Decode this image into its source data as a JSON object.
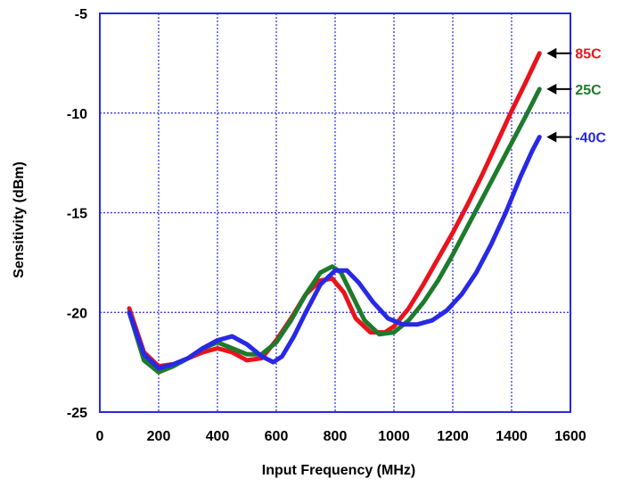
{
  "chart_data": {
    "type": "line",
    "title": "",
    "xlabel": "Input  Frequency (MHz)",
    "ylabel": "Sensitivity (dBm)",
    "xlim": [
      0,
      1600
    ],
    "ylim": [
      -25,
      -5
    ],
    "x_ticks": [
      "0",
      "200",
      "400",
      "600",
      "800",
      "1000",
      "1200",
      "1400",
      "1600"
    ],
    "y_ticks": [
      "-5",
      "-10",
      "-15",
      "-20",
      "-25"
    ],
    "grid": true,
    "legend": "right, arrow labels at line ends",
    "series": [
      {
        "name": "85C",
        "color": "#e8141c",
        "points": [
          [
            100,
            -19.8
          ],
          [
            150,
            -22.0
          ],
          [
            200,
            -22.7
          ],
          [
            250,
            -22.6
          ],
          [
            300,
            -22.3
          ],
          [
            350,
            -22.0
          ],
          [
            400,
            -21.8
          ],
          [
            450,
            -22.0
          ],
          [
            500,
            -22.4
          ],
          [
            550,
            -22.3
          ],
          [
            600,
            -21.4
          ],
          [
            650,
            -20.3
          ],
          [
            700,
            -19.1
          ],
          [
            750,
            -18.4
          ],
          [
            790,
            -18.3
          ],
          [
            830,
            -19.0
          ],
          [
            870,
            -20.3
          ],
          [
            920,
            -21.0
          ],
          [
            970,
            -21.0
          ],
          [
            1000,
            -20.7
          ],
          [
            1050,
            -19.8
          ],
          [
            1100,
            -18.6
          ],
          [
            1150,
            -17.3
          ],
          [
            1200,
            -16.0
          ],
          [
            1250,
            -14.6
          ],
          [
            1300,
            -13.1
          ],
          [
            1350,
            -11.5
          ],
          [
            1400,
            -9.9
          ],
          [
            1450,
            -8.4
          ],
          [
            1495,
            -7.0
          ]
        ]
      },
      {
        "name": "25C",
        "color": "#1e7a2c",
        "points": [
          [
            100,
            -20.0
          ],
          [
            150,
            -22.4
          ],
          [
            200,
            -23.0
          ],
          [
            250,
            -22.7
          ],
          [
            300,
            -22.3
          ],
          [
            350,
            -21.8
          ],
          [
            400,
            -21.5
          ],
          [
            450,
            -21.8
          ],
          [
            500,
            -22.1
          ],
          [
            550,
            -22.1
          ],
          [
            600,
            -21.5
          ],
          [
            650,
            -20.4
          ],
          [
            700,
            -19.1
          ],
          [
            750,
            -18.0
          ],
          [
            790,
            -17.7
          ],
          [
            820,
            -18.0
          ],
          [
            860,
            -19.2
          ],
          [
            900,
            -20.4
          ],
          [
            950,
            -21.1
          ],
          [
            1000,
            -21.0
          ],
          [
            1050,
            -20.4
          ],
          [
            1100,
            -19.5
          ],
          [
            1150,
            -18.4
          ],
          [
            1200,
            -17.1
          ],
          [
            1250,
            -15.7
          ],
          [
            1300,
            -14.3
          ],
          [
            1350,
            -12.9
          ],
          [
            1400,
            -11.5
          ],
          [
            1450,
            -10.1
          ],
          [
            1495,
            -8.8
          ]
        ]
      },
      {
        "name": "-40C",
        "color": "#2828e6",
        "points": [
          [
            100,
            -20.0
          ],
          [
            150,
            -22.1
          ],
          [
            200,
            -22.8
          ],
          [
            250,
            -22.6
          ],
          [
            300,
            -22.3
          ],
          [
            350,
            -21.8
          ],
          [
            400,
            -21.4
          ],
          [
            450,
            -21.2
          ],
          [
            500,
            -21.6
          ],
          [
            550,
            -22.2
          ],
          [
            590,
            -22.5
          ],
          [
            620,
            -22.2
          ],
          [
            660,
            -21.2
          ],
          [
            700,
            -20.0
          ],
          [
            750,
            -18.6
          ],
          [
            800,
            -17.9
          ],
          [
            840,
            -17.9
          ],
          [
            880,
            -18.5
          ],
          [
            930,
            -19.5
          ],
          [
            980,
            -20.3
          ],
          [
            1030,
            -20.6
          ],
          [
            1080,
            -20.6
          ],
          [
            1130,
            -20.4
          ],
          [
            1180,
            -19.9
          ],
          [
            1230,
            -19.1
          ],
          [
            1280,
            -18.0
          ],
          [
            1330,
            -16.6
          ],
          [
            1380,
            -15.0
          ],
          [
            1430,
            -13.2
          ],
          [
            1470,
            -11.9
          ],
          [
            1495,
            -11.2
          ]
        ]
      }
    ]
  },
  "colors": {
    "grid": "#2828e6",
    "frame": "#2828e6",
    "label_85C": "#e8141c",
    "label_25C": "#1e7a2c",
    "label_minus40C": "#2828e6"
  }
}
